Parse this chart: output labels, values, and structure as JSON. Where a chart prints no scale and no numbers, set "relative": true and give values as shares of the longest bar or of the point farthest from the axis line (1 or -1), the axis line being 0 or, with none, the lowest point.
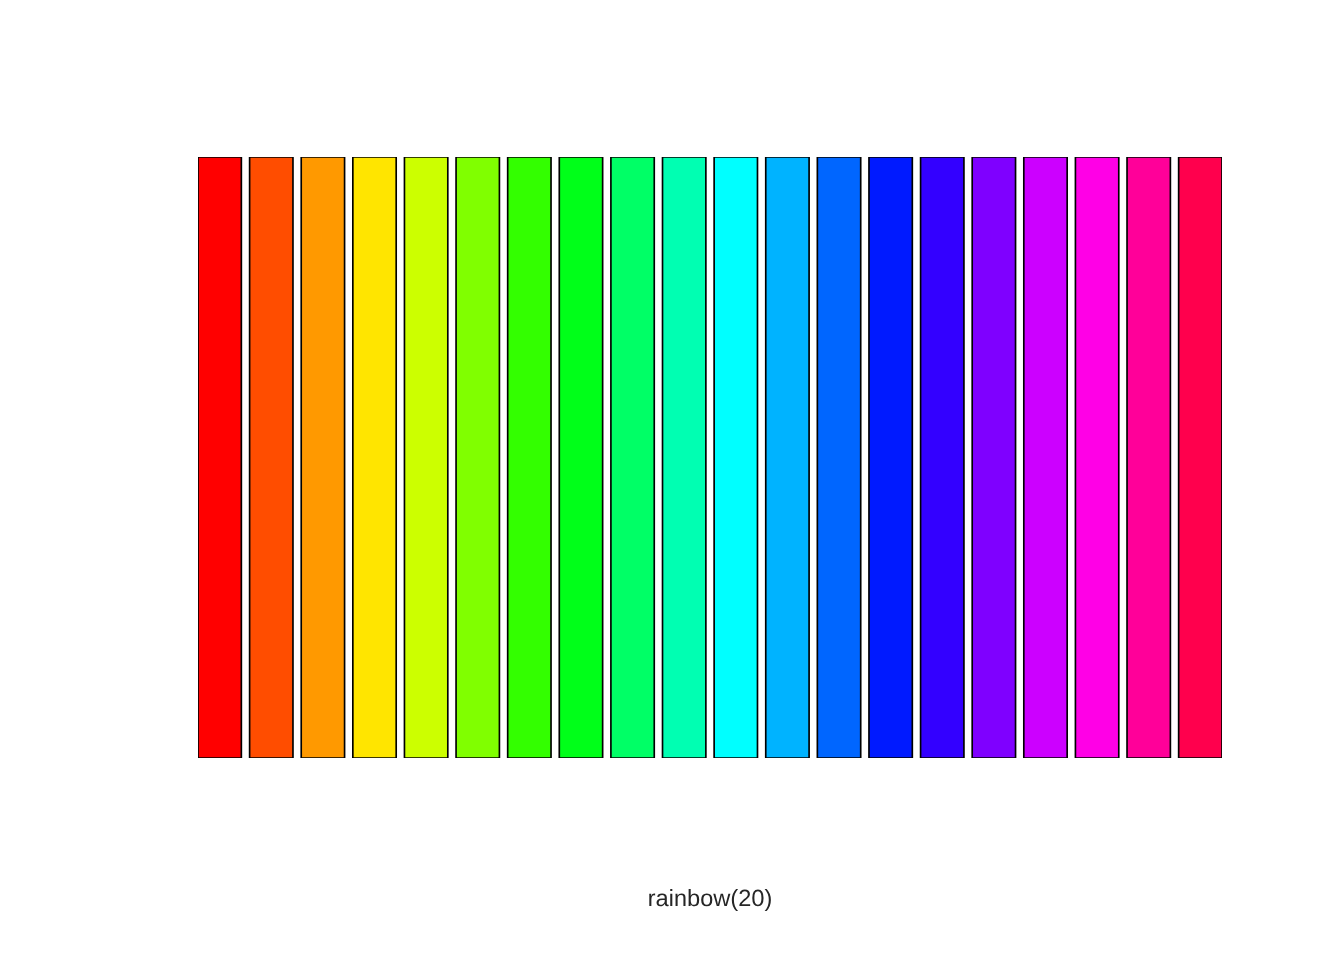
{
  "chart_data": {
    "type": "bar",
    "annotations": [
      "rainbow(20)"
    ],
    "relative": true,
    "categories": [
      null,
      null,
      null,
      null,
      null,
      null,
      null,
      null,
      null,
      null,
      null,
      null,
      null,
      null,
      null,
      null,
      null,
      null,
      null,
      null
    ],
    "values": [
      1,
      1,
      1,
      1,
      1,
      1,
      1,
      1,
      1,
      1,
      1,
      1,
      1,
      1,
      1,
      1,
      1,
      1,
      1,
      1
    ],
    "colors": [
      "#ff0000",
      "#ff4d00",
      "#ff9900",
      "#ffe500",
      "#ccff00",
      "#80ff00",
      "#33ff00",
      "#00ff19",
      "#00ff66",
      "#00ffb2",
      "#00ffff",
      "#00b3ff",
      "#0066ff",
      "#001aff",
      "#3300ff",
      "#7f00ff",
      "#cc00ff",
      "#ff00e6",
      "#ff0099",
      "#ff004d"
    ],
    "legend": false
  }
}
